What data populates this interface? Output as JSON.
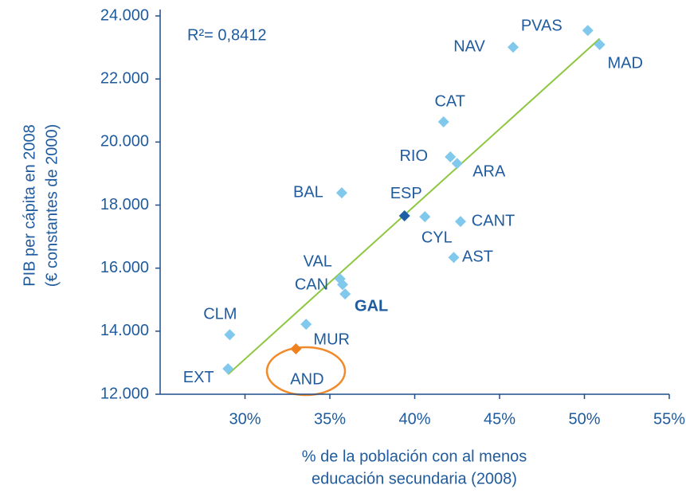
{
  "chart_data": {
    "type": "scatter",
    "annotation": "R²= 0,8412",
    "xlabel": [
      "% de la población con al menos",
      "educación secundaria (2008)"
    ],
    "ylabel": [
      "PIB per cápita en 2008",
      "(€ constantes de 2000)"
    ],
    "xlim": [
      25,
      55
    ],
    "ylim": [
      12000,
      24000
    ],
    "xticks": [
      {
        "value": 30,
        "label": "30%"
      },
      {
        "value": 35,
        "label": "35%"
      },
      {
        "value": 40,
        "label": "40%"
      },
      {
        "value": 45,
        "label": "45%"
      },
      {
        "value": 50,
        "label": "50%"
      },
      {
        "value": 55,
        "label": "55%"
      }
    ],
    "yticks": [
      {
        "value": 12000,
        "label": "12.000"
      },
      {
        "value": 14000,
        "label": "14.000"
      },
      {
        "value": 16000,
        "label": "16.000"
      },
      {
        "value": 18000,
        "label": "18.000"
      },
      {
        "value": 20000,
        "label": "20.000"
      },
      {
        "value": 22000,
        "label": "22.000"
      },
      {
        "value": 24000,
        "label": "24.000"
      }
    ],
    "labels": [
      "PVAS",
      "MAD",
      "NAV",
      "CAT",
      "RIO",
      "ARA",
      "BAL",
      "ESP",
      "CYL",
      "CANT",
      "AST",
      "VAL",
      "CAN",
      "GAL",
      "CLM",
      "MUR",
      "AND",
      "EXT"
    ],
    "x": [
      50.2,
      50.9,
      45.8,
      41.7,
      42.1,
      42.5,
      35.7,
      39.4,
      40.6,
      42.7,
      42.3,
      35.6,
      35.75,
      35.9,
      29.1,
      33.6,
      33.0,
      29.0
    ],
    "y": [
      23540,
      23090,
      23010,
      20640,
      19530,
      19320,
      18390,
      17660,
      17630,
      17480,
      16340,
      15660,
      15480,
      15180,
      13890,
      14220,
      13440,
      12810
    ],
    "colors": [
      "#80c8ec",
      "#80c8ec",
      "#80c8ec",
      "#80c8ec",
      "#80c8ec",
      "#80c8ec",
      "#80c8ec",
      "#1f5fa8",
      "#80c8ec",
      "#80c8ec",
      "#80c8ec",
      "#80c8ec",
      "#80c8ec",
      "#80c8ec",
      "#80c8ec",
      "#80c8ec",
      "#f07f1d",
      "#80c8ec"
    ],
    "trendline": {
      "color": "#8dc63f",
      "x": [
        29.0,
        50.9
      ],
      "y": [
        12630,
        23280
      ]
    }
  }
}
